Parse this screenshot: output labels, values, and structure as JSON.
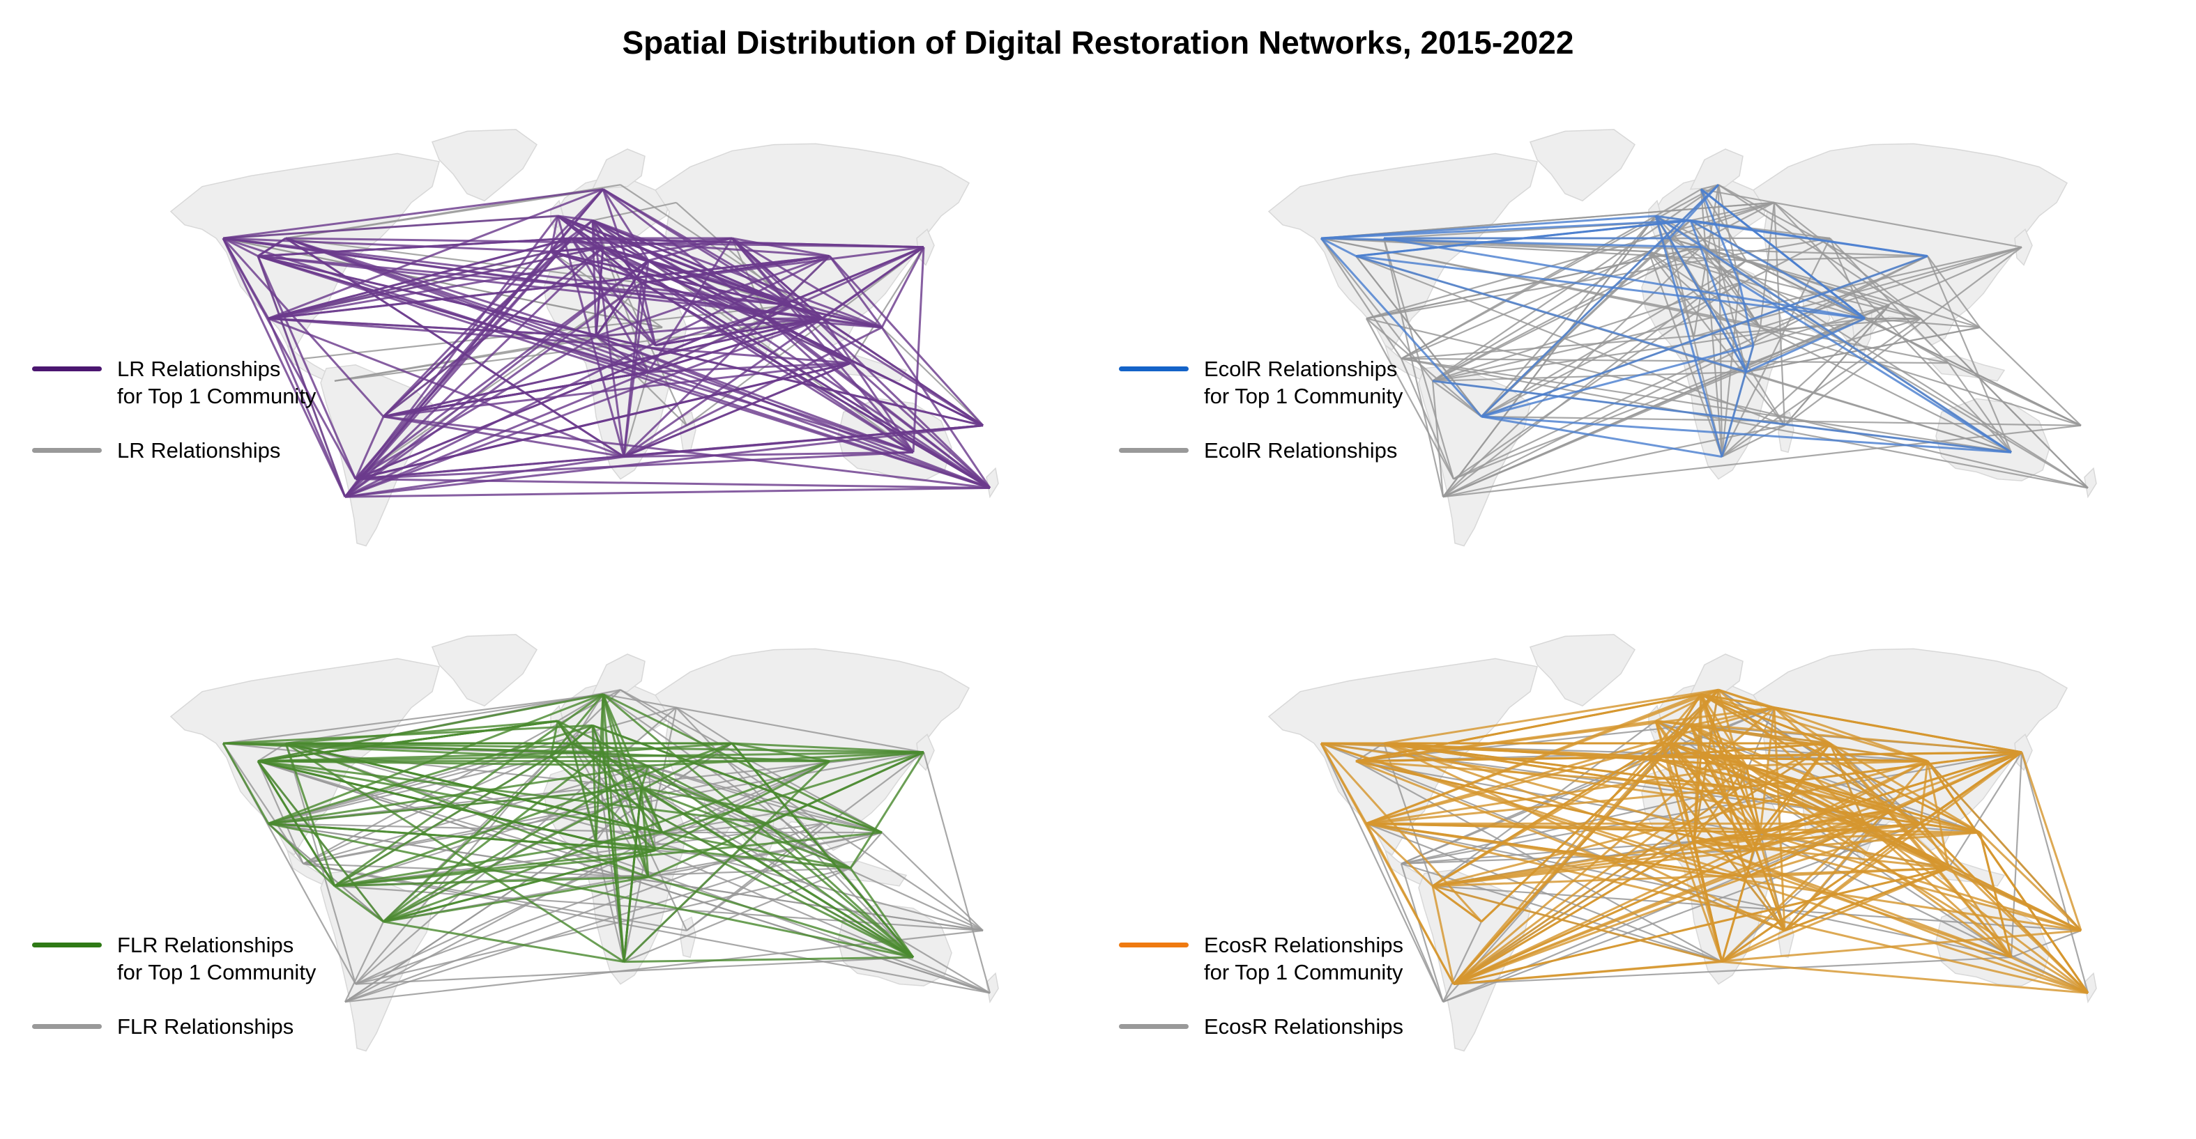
{
  "title": "Spatial Distribution of Digital Restoration Networks, 2015-2022",
  "colors": {
    "land": "#eeeeee",
    "land_border": "#d8d8d8",
    "other_relationships": "#999999"
  },
  "panels": [
    {
      "id": "LR",
      "legend_primary_line1": "LR Relationships",
      "legend_primary_line2": "for Top 1 Community",
      "legend_secondary": "LR Relationships",
      "primary_color": "#4b1670",
      "line_color": "#6b3b8c"
    },
    {
      "id": "EcolR",
      "legend_primary_line1": "EcolR Relationships",
      "legend_primary_line2": "for Top 1 Community",
      "legend_secondary": "EcolR Relationships",
      "primary_color": "#1463c8",
      "line_color": "#4a7fd0"
    },
    {
      "id": "FLR",
      "legend_primary_line1": "FLR Relationships",
      "legend_primary_line2": "for Top 1 Community",
      "legend_secondary": "FLR Relationships",
      "primary_color": "#2f7a16",
      "line_color": "#4a8a30"
    },
    {
      "id": "EcosR",
      "legend_primary_line1": "EcosR Relationships",
      "legend_primary_line2": "for Top 1 Community",
      "legend_secondary": "EcosR Relationships",
      "primary_color": "#ef7a10",
      "line_color": "#d6962e"
    }
  ]
}
